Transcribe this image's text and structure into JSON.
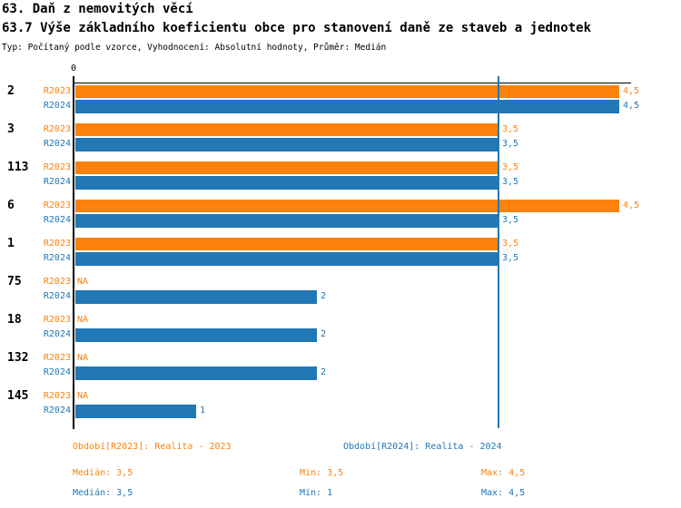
{
  "header": {
    "title1": "63. Daň z nemovitých věcí",
    "title2": "63.7 Výše základního koeficientu obce pro stanovení daně ze staveb a jednotek",
    "subtitle": "Typ: Počítaný podle vzorce, Vyhodnocení: Absolutní hodnoty, Průměr: Medián"
  },
  "colors": {
    "r2023_orange": "#FD810D",
    "r2024_blue": "#2277B5",
    "axis_black": "#000000"
  },
  "chart_data": {
    "type": "bar",
    "orientation": "horizontal",
    "title": "63.7 Výše základního koeficientu obce pro stanovení daně ze staveb a jednotek",
    "categories": [
      "2",
      "3",
      "113",
      "6",
      "1",
      "75",
      "18",
      "132",
      "145"
    ],
    "series": [
      {
        "name": "R2023",
        "color": "#FD810D",
        "values": [
          4.5,
          3.5,
          3.5,
          4.5,
          3.5,
          null,
          null,
          null,
          null
        ],
        "labels": [
          "4,5",
          "3,5",
          "3,5",
          "4,5",
          "3,5",
          "NA",
          "NA",
          "NA",
          "NA"
        ]
      },
      {
        "name": "R2024",
        "color": "#2277B5",
        "values": [
          4.5,
          3.5,
          3.5,
          3.5,
          3.5,
          2,
          2,
          2,
          1
        ],
        "labels": [
          "4,5",
          "3,5",
          "3,5",
          "3,5",
          "3,5",
          "2",
          "2",
          "2",
          "1"
        ]
      }
    ],
    "na_label": "NA",
    "x_axis_tick": "0",
    "xlim": [
      0,
      4.6
    ],
    "marker_line_value": 3.5,
    "marker_line_color": "#2277B5",
    "grid": false,
    "legend_position": "bottom"
  },
  "footer": {
    "legend": [
      {
        "label": "Období[R2023]: Realita - 2023"
      },
      {
        "label": "Období[R2024]: Realita - 2024"
      }
    ],
    "stats": [
      {
        "median": "Medián: 3,5",
        "min": "Min: 3,5",
        "max": "Max: 4,5"
      },
      {
        "median": "Medián: 3,5",
        "min": "Min: 1",
        "max": "Max: 4,5"
      }
    ]
  }
}
